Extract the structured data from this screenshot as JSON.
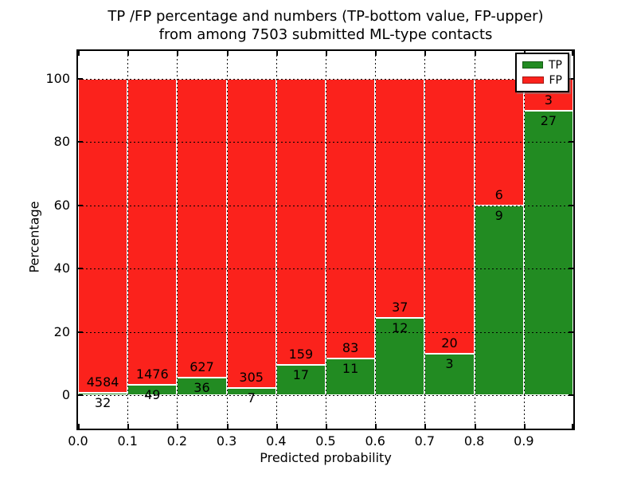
{
  "figure": {
    "title_line1": "TP /FP percentage and numbers (TP-bottom value, FP-upper)",
    "title_line2": "from among 7503 submitted ML-type contacts"
  },
  "axes": {
    "xlabel": "Predicted probability",
    "ylabel": "Percentage",
    "ytick_values": [
      0,
      20,
      40,
      60,
      80,
      100
    ],
    "ytick_labels": [
      "0",
      "20",
      "40",
      "60",
      "80",
      "100"
    ],
    "xtick_labels": [
      "0.0",
      "0.1",
      "0.2",
      "0.3",
      "0.4",
      "0.5",
      "0.6",
      "0.7",
      "0.8",
      "0.9"
    ],
    "grid": true
  },
  "legend": {
    "position": "upper-right",
    "items": [
      {
        "label": "TP",
        "color": "#228b22"
      },
      {
        "label": "FP",
        "color": "#fb221c"
      }
    ]
  },
  "chart_data": {
    "type": "bar",
    "stacked": true,
    "normalized_to_percent": true,
    "title": "TP /FP percentage and numbers (TP-bottom value, FP-upper) from among 7503 submitted ML-type contacts",
    "xlabel": "Predicted probability",
    "ylabel": "Percentage",
    "xlim": [
      0.0,
      1.0
    ],
    "ylim": [
      -11,
      109
    ],
    "x_bins": [
      [
        0.0,
        0.1
      ],
      [
        0.1,
        0.2
      ],
      [
        0.2,
        0.3
      ],
      [
        0.3,
        0.4
      ],
      [
        0.4,
        0.5
      ],
      [
        0.5,
        0.6
      ],
      [
        0.6,
        0.7
      ],
      [
        0.7,
        0.8
      ],
      [
        0.8,
        0.9
      ],
      [
        0.9,
        1.0
      ]
    ],
    "series": [
      {
        "name": "TP",
        "color": "#228b22",
        "counts": [
          32,
          49,
          36,
          7,
          17,
          11,
          12,
          3,
          9,
          27
        ]
      },
      {
        "name": "FP",
        "color": "#fb221c",
        "counts": [
          4584,
          1476,
          627,
          305,
          159,
          83,
          37,
          20,
          6,
          3
        ]
      }
    ],
    "tp_percent_per_bin": [
      0.69,
      3.21,
      5.43,
      2.24,
      9.66,
      11.7,
      24.49,
      13.04,
      60.0,
      90.0
    ],
    "total_contacts": 7503,
    "annotation_note": "FP count above boundary, TP count below boundary",
    "bar_edge_color": "#ffffff"
  }
}
